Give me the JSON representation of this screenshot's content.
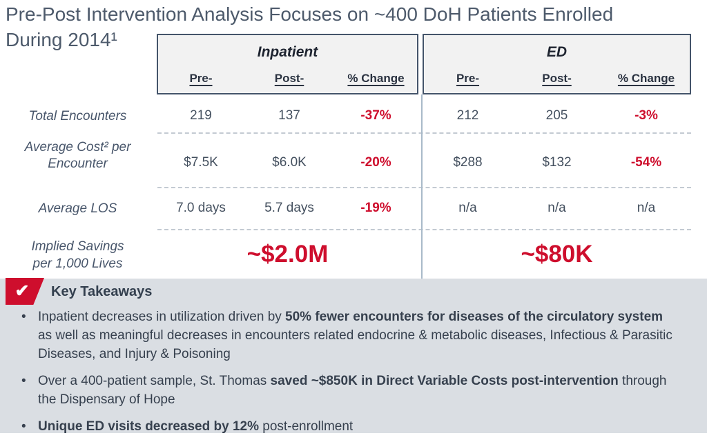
{
  "slide": {
    "title_line1": "Pre-Post Intervention Analysis Focuses on ~400 DoH Patients Enrolled",
    "title_line2": "During 2014¹"
  },
  "table": {
    "row_labels": {
      "encounters": "Total Encounters",
      "cost_line1": "Average Cost² per",
      "cost_line2": "Encounter",
      "los": "Average LOS",
      "savings_line1": "Implied Savings",
      "savings_line2": "per 1,000 Lives"
    },
    "inpatient": {
      "label": "Inpatient",
      "col_pre": "Pre-",
      "col_post": "Post-",
      "col_change": "% Change",
      "encounters": {
        "pre": "219",
        "post": "137",
        "change": "-37%"
      },
      "cost": {
        "pre": "$7.5K",
        "post": "$6.0K",
        "change": "-20%"
      },
      "los": {
        "pre": "7.0 days",
        "post": "5.7 days",
        "change": "-19%"
      },
      "savings": "~$2.0M"
    },
    "ed": {
      "label": "ED",
      "col_pre": "Pre-",
      "col_post": "Post-",
      "col_change": "% Change",
      "encounters": {
        "pre": "212",
        "post": "205",
        "change": "-3%"
      },
      "cost": {
        "pre": "$288",
        "post": "$132",
        "change": "-54%"
      },
      "los": {
        "pre": "n/a",
        "post": "n/a",
        "change": "n/a"
      },
      "savings": "~$80K"
    }
  },
  "takeaways": {
    "title": "Key Takeaways",
    "check_icon": "✔",
    "bullets": [
      {
        "segments": [
          {
            "t": "Inpatient decreases in utilization driven by ",
            "b": false
          },
          {
            "t": "50% fewer encounters for diseases of the circulatory system",
            "b": true
          },
          {
            "t": " as well as meaningful decreases in encounters related endocrine & metabolic diseases, Infectious & Parasitic Diseases, and Injury & Poisoning",
            "b": false
          }
        ]
      },
      {
        "segments": [
          {
            "t": "Over a 400-patient sample, St. Thomas ",
            "b": false
          },
          {
            "t": "saved ~$850K in Direct Variable Costs post-intervention",
            "b": true
          },
          {
            "t": " through the Dispensary of Hope",
            "b": false
          }
        ]
      },
      {
        "segments": [
          {
            "t": "Unique ED visits decreased by 12%",
            "b": true
          },
          {
            "t": " post-enrollment",
            "b": false
          }
        ]
      }
    ]
  },
  "colors": {
    "accent_red": "#ce0e2d",
    "slate_text": "#44546a",
    "panel_gray": "#dadee3",
    "header_fill": "#f2f2f2"
  }
}
